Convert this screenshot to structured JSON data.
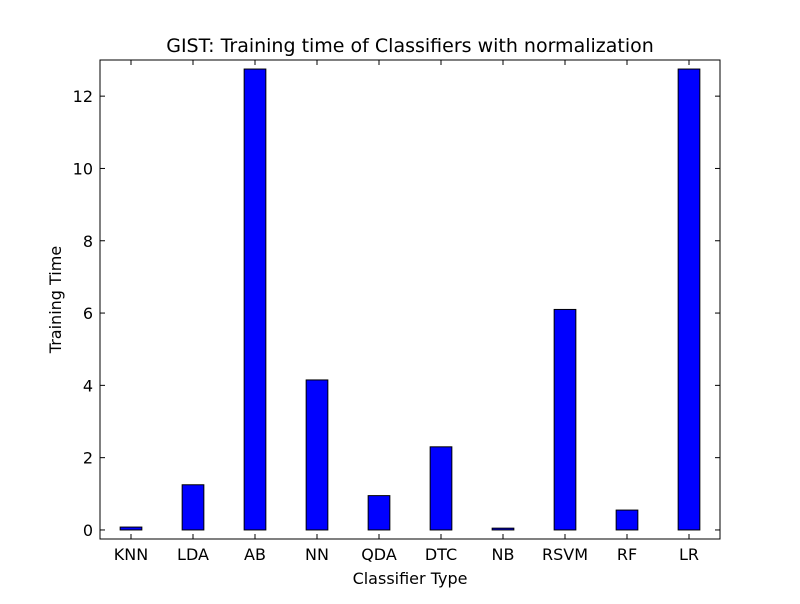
{
  "chart_data": {
    "type": "bar",
    "title": "GIST: Training time of Classifiers with normalization",
    "xlabel": "Classifier Type",
    "ylabel": "Training Time",
    "categories": [
      "KNN",
      "LDA",
      "AB",
      "NN",
      "QDA",
      "DTC",
      "NB",
      "RSVM",
      "RF",
      "LR"
    ],
    "values": [
      0.08,
      1.25,
      12.75,
      4.15,
      0.95,
      2.3,
      0.05,
      6.1,
      0.55,
      12.75
    ],
    "ylim": [
      -0.25,
      13
    ],
    "yticks": [
      0,
      2,
      4,
      6,
      8,
      10,
      12
    ],
    "ytick_labels": [
      "0",
      "2",
      "4",
      "6",
      "8",
      "10",
      "12"
    ],
    "grid": false,
    "bar_color": "#0000ff",
    "edge_color": "#000000"
  }
}
